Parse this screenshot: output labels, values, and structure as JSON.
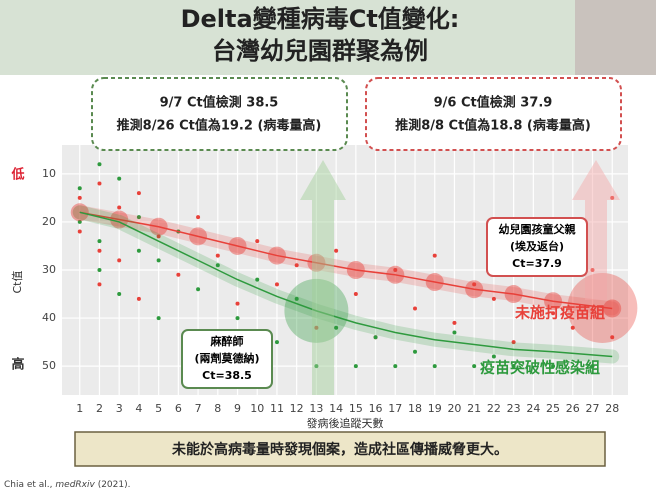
{
  "header": {
    "title": "Delta變種病毒Ct值變化:",
    "subtitle": "台灣幼兒園群聚為例"
  },
  "callouts": {
    "left": [
      "9/7 Ct值檢測 38.5",
      "推測8/26 Ct值為19.2 (病毒量高)"
    ],
    "right": [
      "9/6 Ct值檢測 37.9",
      "推測8/8 Ct值為18.8 (病毒量高)"
    ],
    "case_green": [
      "麻醉師",
      "(兩劑莫德納)",
      "Ct=38.5"
    ],
    "case_red": [
      "幼兒園孩童父親",
      "(埃及返台)",
      "Ct=37.9"
    ]
  },
  "chart_data": {
    "type": "scatter",
    "y_label": "Ct值",
    "y_low_label": "低",
    "y_high_label": "高",
    "x_label": "發病後追蹤天數",
    "xlim": [
      0.1,
      28.8
    ],
    "xticks": [
      1,
      2,
      3,
      4,
      5,
      6,
      7,
      8,
      9,
      10,
      11,
      12,
      13,
      14,
      15,
      16,
      17,
      18,
      19,
      20,
      21,
      22,
      23,
      24,
      25,
      26,
      27,
      28
    ],
    "ylim": [
      56,
      4
    ],
    "yticks": [
      10,
      20,
      30,
      40,
      50
    ],
    "grid": true,
    "series": [
      {
        "name": "未施打疫苗組",
        "color": "#e8413a",
        "x": [
          1,
          1,
          2,
          2,
          2,
          3,
          3,
          4,
          4,
          5,
          6,
          7,
          8,
          9,
          10,
          11,
          12,
          13,
          14,
          15,
          16,
          17,
          18,
          19,
          20,
          21,
          22,
          23,
          24,
          25,
          26,
          27,
          28,
          28
        ],
        "values": [
          15,
          22,
          12,
          26,
          33,
          17,
          28,
          14,
          36,
          23,
          31,
          19,
          27,
          37,
          24,
          33,
          29,
          42,
          26,
          35,
          44,
          30,
          38,
          27,
          41,
          33,
          36,
          45,
          31,
          39,
          42,
          30,
          15,
          44
        ],
        "trend": {
          "x": [
            1,
            3,
            5,
            7,
            9,
            11,
            13,
            15,
            17,
            19,
            21,
            23,
            25,
            28
          ],
          "values": [
            18,
            19.5,
            21,
            23,
            25,
            27,
            28.5,
            30,
            31,
            32.5,
            34,
            35,
            36.5,
            38
          ]
        },
        "highlight": {
          "x": 27.5,
          "value": 37.9
        }
      },
      {
        "name": "疫苗突破性感染組",
        "color": "#2e9a3e",
        "x": [
          1,
          1,
          2,
          2,
          2,
          3,
          3,
          4,
          4,
          5,
          5,
          6,
          7,
          8,
          9,
          10,
          11,
          12,
          13,
          14,
          15,
          16,
          17,
          18,
          19,
          20,
          21,
          22,
          23,
          25,
          27
        ],
        "values": [
          13,
          20,
          8,
          24,
          30,
          11,
          35,
          19,
          26,
          28,
          40,
          22,
          34,
          29,
          40,
          32,
          45,
          36,
          50,
          42,
          50,
          44,
          50,
          47,
          50,
          43,
          50,
          48,
          50,
          50,
          50
        ],
        "trend": {
          "x": [
            1,
            3,
            5,
            7,
            9,
            11,
            13,
            15,
            17,
            19,
            21,
            23,
            25,
            28
          ],
          "values": [
            18,
            20,
            24,
            28,
            32,
            35.5,
            38.5,
            41,
            43,
            44.5,
            45.5,
            46.5,
            47,
            48
          ]
        },
        "highlight": {
          "x": 13,
          "value": 38.5
        }
      }
    ]
  },
  "footer": {
    "text": "未能於高病毒量時發現個案，造成社區傳播威脅更大。",
    "citation_authors": "Chia et al., ",
    "citation_source": "medRxiv",
    "citation_year": " (2021)."
  }
}
